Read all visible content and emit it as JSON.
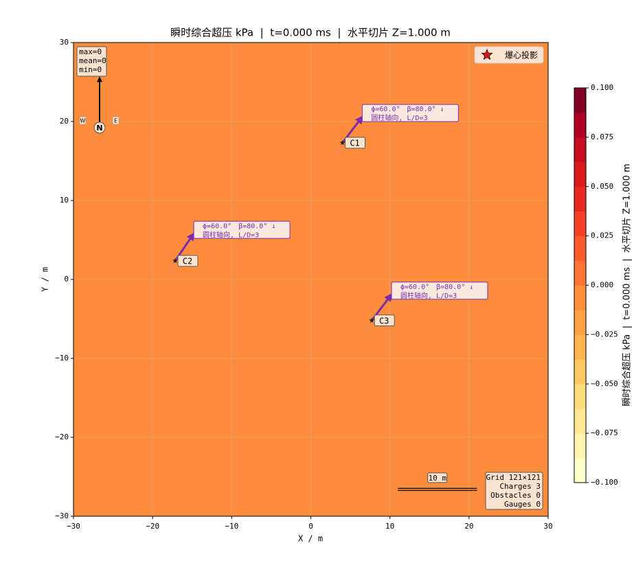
{
  "chart_data": {
    "type": "contour",
    "title": "瞬时综合超压 kPa  |  t=0.000 ms  |  水平切片 Z=1.000 m",
    "xlabel": "X / m",
    "ylabel": "Y / m",
    "xlim": [
      -30,
      30
    ],
    "ylim": [
      -30,
      30
    ],
    "xticks": [
      {
        "value": -30,
        "label": "−30"
      },
      {
        "value": -20,
        "label": "−20"
      },
      {
        "value": -10,
        "label": "−10"
      },
      0,
      10,
      20,
      30
    ],
    "yticks": [
      {
        "value": -30,
        "label": "−30"
      },
      {
        "value": -20,
        "label": "−20"
      },
      {
        "value": -10,
        "label": "−10"
      },
      0,
      10,
      20,
      30
    ],
    "grid": true,
    "field": {
      "value": 0,
      "color": "#fd8d3c"
    },
    "stats": [
      "max=0",
      "mean=0",
      "min=0"
    ],
    "legend": {
      "label": "爆心投影",
      "loc": "upper right",
      "color": "#d7191c"
    },
    "arrow_color": "#7b2cad",
    "charges": [
      {
        "name": "C1",
        "x": 4,
        "y": 17.3,
        "arrow_to": [
          6.5,
          20.6
        ],
        "note": [
          "ϕ=60.0°　β=80.0° ↓",
          "圆柱轴向, L/D=3"
        ]
      },
      {
        "name": "C2",
        "x": -17.15,
        "y": 2.35,
        "arrow_to": [
          -14.8,
          5.8
        ],
        "note": [
          "ϕ=60.0°　β=80.0° ↓",
          "圆柱轴向, L/D=3"
        ]
      },
      {
        "name": "C3",
        "x": 7.7,
        "y": -5.2,
        "arrow_to": [
          10.2,
          -1.9
        ],
        "note": [
          "ϕ=60.0°　β=80.0° ↓",
          "圆柱轴向, L/D=3"
        ]
      }
    ],
    "compass": {
      "north": "N",
      "west": "W",
      "east": "E"
    },
    "scale_bar": {
      "label": "10 m",
      "x0": 11,
      "x1": 21,
      "y": -26.6
    },
    "info": [
      "Grid 121×121",
      "Charges 3",
      "Obstacles 0",
      "Gauges 0"
    ],
    "colorbar": {
      "lim": [
        -0.1,
        0.1
      ],
      "ticks": [
        {
          "value": -0.1,
          "label": "−0.100"
        },
        {
          "value": -0.075,
          "label": "−0.075"
        },
        {
          "value": -0.05,
          "label": "−0.050"
        },
        {
          "value": -0.025,
          "label": "−0.025"
        },
        {
          "value": 0,
          "label": "0.000"
        },
        {
          "value": 0.025,
          "label": "0.025"
        },
        {
          "value": 0.05,
          "label": "0.050"
        },
        {
          "value": 0.075,
          "label": "0.075"
        },
        {
          "value": 0.1,
          "label": "0.100"
        }
      ],
      "label": "瞬时综合超压 kPa  |  t=0.000 ms  |  水平切片 Z=1.000 m",
      "colors": [
        "#ffffcc",
        "#fff3b0",
        "#ffe895",
        "#fedc7d",
        "#fec965",
        "#feb54f",
        "#fea245",
        "#fd8f3c",
        "#fc7535",
        "#fb5b2d",
        "#f44127",
        "#e9281f",
        "#db1a1c",
        "#c70d22",
        "#b00026",
        "#800026"
      ]
    }
  }
}
